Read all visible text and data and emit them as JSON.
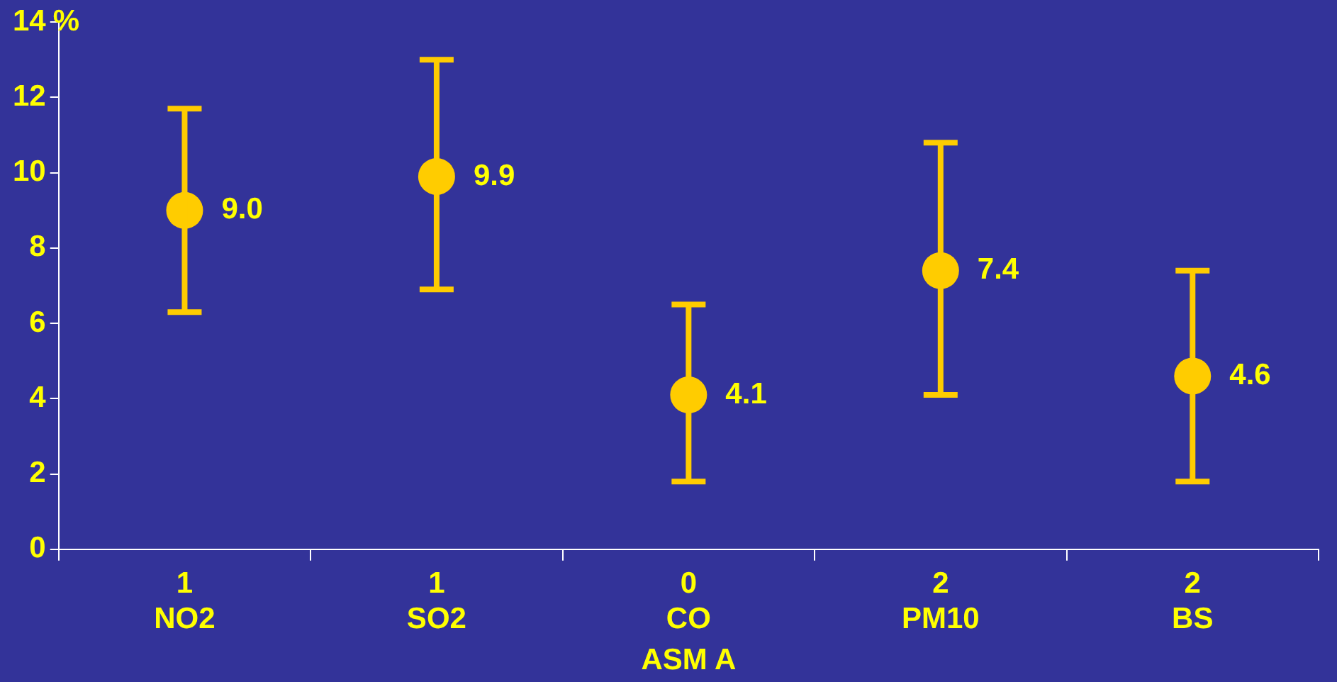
{
  "chart_data": {
    "type": "scatter",
    "ylabel": "%",
    "xlabel": "ASM A",
    "categories": [
      "1\nNO2",
      "1\nSO2",
      "0\nCO",
      "2\nPM10",
      "2\nBS"
    ],
    "values": [
      9.0,
      9.9,
      4.1,
      7.4,
      4.6
    ],
    "value_labels": [
      "9.0",
      "9.9",
      "4.1",
      "7.4",
      "4.6"
    ],
    "errors": [
      [
        6.3,
        11.7
      ],
      [
        6.9,
        13.0
      ],
      [
        1.8,
        6.5
      ],
      [
        4.1,
        10.8
      ],
      [
        1.8,
        7.4
      ]
    ],
    "color": "#ffcc00",
    "marker": "circle",
    "ylim": [
      0,
      14
    ],
    "yticks": [
      0,
      2,
      4,
      6,
      8,
      10,
      12,
      14
    ],
    "grid": false,
    "legend": false
  }
}
